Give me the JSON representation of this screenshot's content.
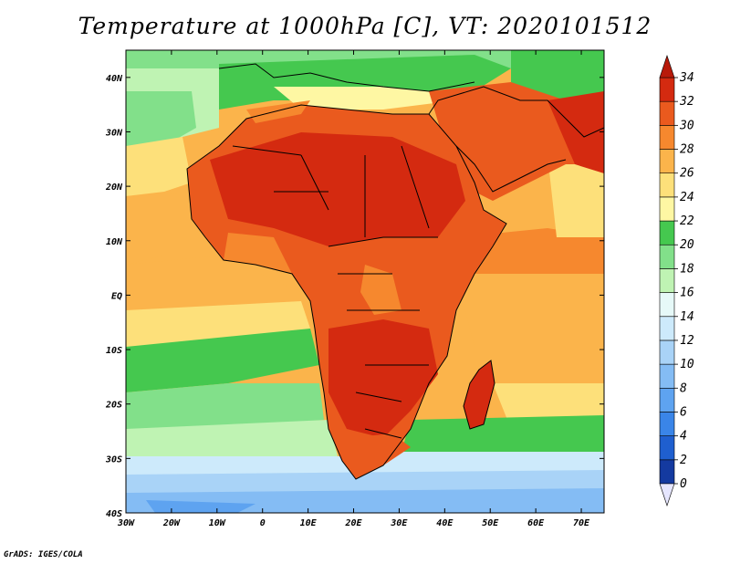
{
  "title": "Temperature at 1000hPa [C], VT: 2020101512",
  "credit": "GrADS: IGES/COLA",
  "map": {
    "projection": "latlon",
    "lon_range": [
      -30,
      75
    ],
    "lat_range": [
      -40,
      45
    ],
    "lon_ticks": [
      {
        "v": -30,
        "label": "30W"
      },
      {
        "v": -20,
        "label": "20W"
      },
      {
        "v": -10,
        "label": "10W"
      },
      {
        "v": 0,
        "label": "0"
      },
      {
        "v": 10,
        "label": "10E"
      },
      {
        "v": 20,
        "label": "20E"
      },
      {
        "v": 30,
        "label": "30E"
      },
      {
        "v": 40,
        "label": "40E"
      },
      {
        "v": 50,
        "label": "50E"
      },
      {
        "v": 60,
        "label": "60E"
      },
      {
        "v": 70,
        "label": "70E"
      }
    ],
    "lat_ticks": [
      {
        "v": 40,
        "label": "40N"
      },
      {
        "v": 30,
        "label": "30N"
      },
      {
        "v": 20,
        "label": "20N"
      },
      {
        "v": 10,
        "label": "10N"
      },
      {
        "v": 0,
        "label": "EQ"
      },
      {
        "v": -10,
        "label": "10S"
      },
      {
        "v": -20,
        "label": "20S"
      },
      {
        "v": -30,
        "label": "30S"
      },
      {
        "v": -40,
        "label": "40S"
      }
    ]
  },
  "colorbar": {
    "levels": [
      "0",
      "2",
      "4",
      "6",
      "8",
      "10",
      "12",
      "14",
      "16",
      "18",
      "20",
      "22",
      "24",
      "26",
      "28",
      "30",
      "32",
      "34"
    ],
    "colors": [
      "#0a1a6b",
      "#143aa0",
      "#1f5fcf",
      "#3a85e8",
      "#5ea3f0",
      "#84bcf4",
      "#a9d3f7",
      "#cdeafb",
      "#e6f9f8",
      "#bff3b3",
      "#82e08a",
      "#45c84f",
      "#fef7a3",
      "#fde07a",
      "#fbb44b",
      "#f6882e",
      "#ea5a1e",
      "#d42a10",
      "#b81a0a"
    ],
    "under_color": "#e6e6ff",
    "over_color": "#b81a0a"
  }
}
